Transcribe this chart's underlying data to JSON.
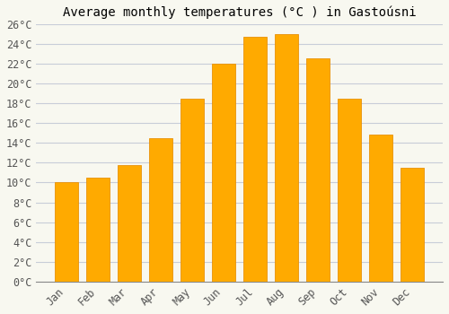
{
  "title": "Average monthly temperatures (°C ) in Gastoúsni",
  "months": [
    "Jan",
    "Feb",
    "Mar",
    "Apr",
    "May",
    "Jun",
    "Jul",
    "Aug",
    "Sep",
    "Oct",
    "Nov",
    "Dec"
  ],
  "values": [
    10.0,
    10.5,
    11.8,
    14.5,
    18.5,
    22.0,
    24.7,
    25.0,
    22.5,
    18.5,
    14.8,
    11.5
  ],
  "bar_color": "#FFAA00",
  "bar_edge_color": "#E8920A",
  "background_color": "#F8F8F0",
  "grid_color": "#C8CDD8",
  "ylim": [
    0,
    26
  ],
  "yticks": [
    0,
    2,
    4,
    6,
    8,
    10,
    12,
    14,
    16,
    18,
    20,
    22,
    24,
    26
  ],
  "title_fontsize": 10,
  "tick_fontsize": 8.5
}
